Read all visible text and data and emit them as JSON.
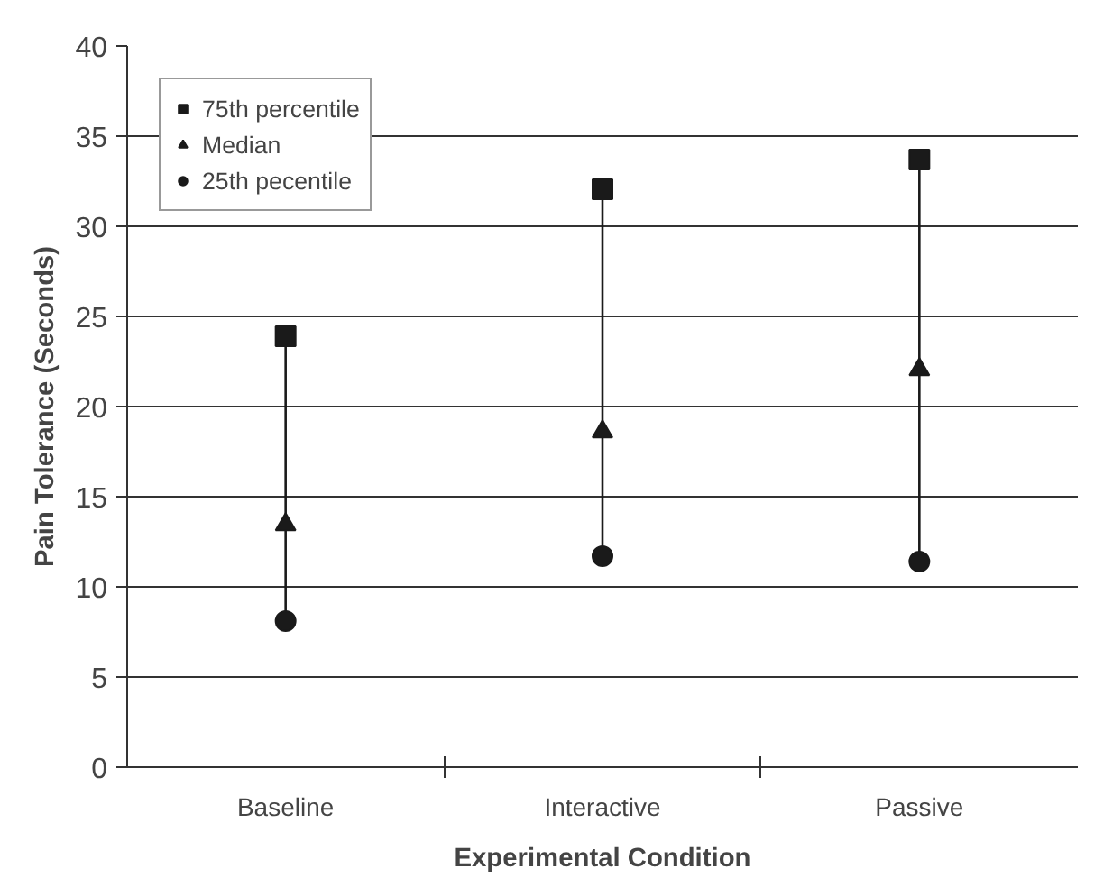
{
  "chart_data": {
    "type": "scatter",
    "xlabel": "Experimental Condition",
    "ylabel": "Pain Tolerance (Seconds)",
    "categories": [
      "Baseline",
      "Interactive",
      "Passive"
    ],
    "series": [
      {
        "type": "line",
        "color": "#1a1a1a",
        "marker": "none",
        "x": [
          "Baseline",
          "Baseline"
        ],
        "values": [
          8.1,
          23.9
        ]
      },
      {
        "type": "line",
        "color": "#1a1a1a",
        "marker": "none",
        "x": [
          "Interactive",
          "Interactive"
        ],
        "values": [
          11.7,
          32.05
        ]
      },
      {
        "type": "line",
        "color": "#1a1a1a",
        "marker": "none",
        "x": [
          "Passive",
          "Passive"
        ],
        "values": [
          11.4,
          33.7
        ]
      },
      {
        "name": "75th percentile",
        "color": "#1a1a1a",
        "marker": "square",
        "values": [
          23.9,
          32.05,
          33.7
        ]
      },
      {
        "name": "Median",
        "color": "#1a1a1a",
        "marker": "triangle",
        "values": [
          13.45,
          18.6,
          22.05
        ]
      },
      {
        "name": "25th pecentile",
        "color": "#1a1a1a",
        "marker": "circle",
        "values": [
          8.1,
          11.7,
          11.4
        ]
      }
    ],
    "ylim": [
      0,
      40
    ],
    "yticks": [
      0,
      5,
      10,
      15,
      20,
      25,
      30,
      35,
      40
    ],
    "grid": "y",
    "legend": "top left"
  }
}
